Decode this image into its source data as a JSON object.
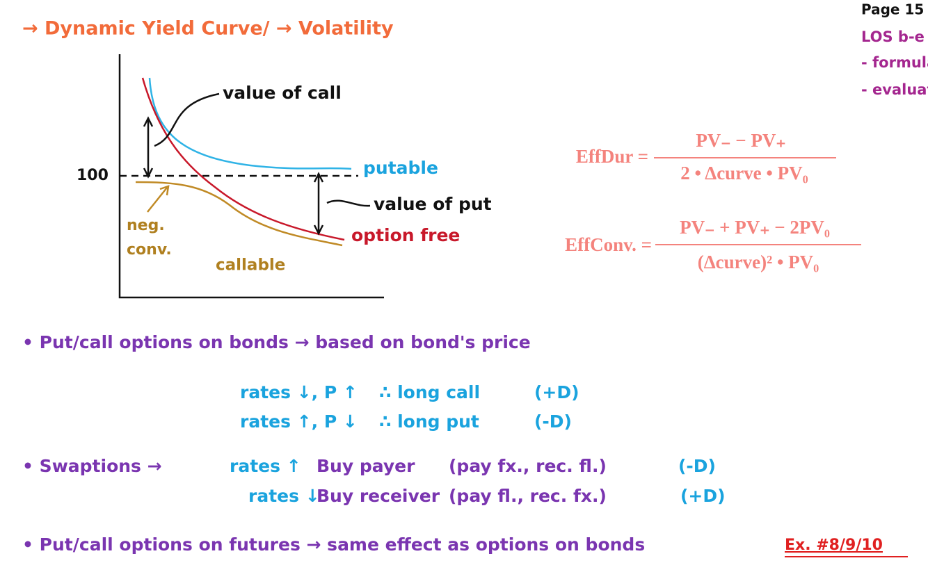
{
  "header": {
    "title": "→ Dynamic Yield Curve/ → Volatility",
    "page": "Page 15",
    "los": "LOS b-e",
    "tasks": [
      "- formulate",
      "- evaluate"
    ]
  },
  "diagram": {
    "value_of_call": "value of call",
    "par": "100",
    "putable": "putable",
    "value_of_put": "value of put",
    "option_free": "option free",
    "neg": "neg.",
    "conv": "conv.",
    "callable": "callable"
  },
  "formulas": [
    {
      "label": "EffDur =",
      "numerator": "PV₋ − PV₊",
      "denominator": "2 • Δcurve • PV₀"
    },
    {
      "label": "EffConv. =",
      "numerator": "PV₋ + PV₊ − 2PV₀",
      "denominator": "(Δcurve)² • PV₀"
    }
  ],
  "bullets": {
    "bonds": {
      "text": "• Put/call options on bonds → based on bond's price",
      "rows": [
        [
          "rates ↓, P ↑",
          "∴ long call",
          "(+D)"
        ],
        [
          "rates ↑, P ↓",
          "∴ long put",
          "(-D)"
        ]
      ]
    },
    "swaptions": {
      "text": "• Swaptions →",
      "rows": [
        [
          "rates ↑",
          "Buy payer",
          "(pay fx., rec. fl.)",
          "(-D)"
        ],
        [
          "rates ↓",
          "Buy receiver",
          "(pay fl., rec. fx.)",
          "(+D)"
        ]
      ]
    },
    "futures": {
      "text": "• Put/call options on futures → same effect as options on bonds",
      "reference": "Ex. #8/9/10"
    }
  }
}
